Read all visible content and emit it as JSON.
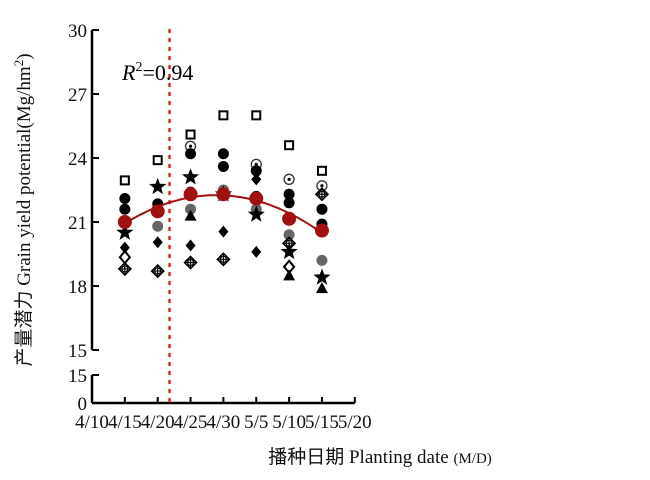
{
  "chart_data": {
    "type": "scatter",
    "title": "",
    "xlabel": "播种日期 Planting date",
    "xlabel_unit": "(M/D)",
    "ylabel": "产量潜力 Grain yield potential(Mg/hm",
    "ylabel_sup": "2",
    "ylabel_end": ")",
    "annotation": {
      "r_label": "R",
      "r_sup": "2",
      "r_value": "=0.94"
    },
    "x_tick_labels": [
      "4/10",
      "4/15",
      "4/20",
      "4/25",
      "4/30",
      "5/5",
      "5/10",
      "5/15",
      "5/20"
    ],
    "x_tick_days": [
      0,
      5,
      10,
      15,
      20,
      25,
      30,
      35,
      40
    ],
    "y_ticks_upper": [
      15,
      18,
      21,
      24,
      27,
      30
    ],
    "y_ticks_lower": [
      0,
      15
    ],
    "ylim_upper": [
      15,
      30
    ],
    "ylim_lower": [
      0,
      15
    ],
    "reference_line_day": 11.8,
    "reference_color": "#e0201b",
    "fit_color": "#a01010",
    "mean_series": {
      "name": "mean",
      "days": [
        5,
        10,
        15,
        20,
        25,
        30,
        35
      ],
      "values": [
        21.0,
        21.5,
        22.3,
        22.3,
        22.1,
        21.15,
        20.6
      ]
    },
    "points": [
      {
        "day": 5,
        "values": [
          [
            "square",
            22.95
          ],
          [
            "circle",
            22.1
          ],
          [
            "circle",
            21.6
          ],
          [
            "star",
            20.5
          ],
          [
            "diamond",
            19.8
          ],
          [
            "diamond-open",
            19.35
          ],
          [
            "crossdiamond",
            18.8
          ]
        ]
      },
      {
        "day": 10,
        "values": [
          [
            "square",
            23.9
          ],
          [
            "star",
            22.65
          ],
          [
            "circle",
            21.85
          ],
          [
            "gray",
            20.8
          ],
          [
            "diamond",
            20.05
          ],
          [
            "crossdiamond",
            18.7
          ]
        ]
      },
      {
        "day": 15,
        "values": [
          [
            "square",
            25.1
          ],
          [
            "dotcircle",
            24.55
          ],
          [
            "circle",
            24.2
          ],
          [
            "star",
            23.1
          ],
          [
            "circle",
            22.4
          ],
          [
            "gray",
            21.6
          ],
          [
            "triangle",
            21.3
          ],
          [
            "diamond",
            19.9
          ],
          [
            "crossdiamond",
            19.1
          ]
        ]
      },
      {
        "day": 20,
        "values": [
          [
            "square",
            26.0
          ],
          [
            "circle",
            24.2
          ],
          [
            "circle",
            23.6
          ],
          [
            "gray",
            22.5
          ],
          [
            "star",
            22.3
          ],
          [
            "diamond",
            20.55
          ],
          [
            "crossdiamond",
            19.25
          ]
        ]
      },
      {
        "day": 25,
        "values": [
          [
            "square",
            26.0
          ],
          [
            "dotcircle",
            23.7
          ],
          [
            "circle",
            23.4
          ],
          [
            "diamond",
            23.0
          ],
          [
            "circle",
            22.2
          ],
          [
            "gray",
            21.6
          ],
          [
            "star",
            21.35
          ],
          [
            "diamond",
            19.6
          ]
        ]
      },
      {
        "day": 30,
        "values": [
          [
            "square",
            24.6
          ],
          [
            "dotcircle",
            23.0
          ],
          [
            "circle",
            22.3
          ],
          [
            "circle",
            21.9
          ],
          [
            "gray",
            20.4
          ],
          [
            "crossdiamond",
            20.0
          ],
          [
            "star",
            19.6
          ],
          [
            "diamond-open",
            18.9
          ],
          [
            "triangle",
            18.5
          ]
        ]
      },
      {
        "day": 35,
        "values": [
          [
            "square",
            23.4
          ],
          [
            "dotcircle",
            22.7
          ],
          [
            "crossdiamond",
            22.3
          ],
          [
            "circle",
            21.6
          ],
          [
            "circle",
            20.9
          ],
          [
            "gray",
            19.2
          ],
          [
            "star",
            18.4
          ],
          [
            "triangle",
            17.9
          ]
        ]
      }
    ]
  }
}
